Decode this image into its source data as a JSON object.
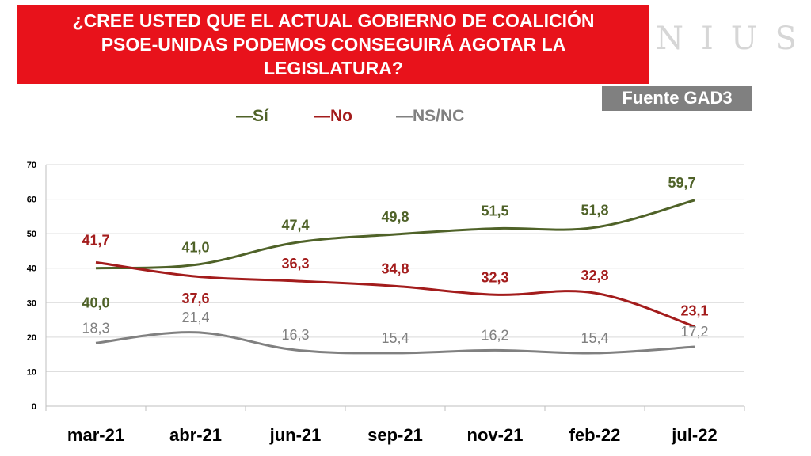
{
  "header": {
    "title": "¿CREE USTED QUE EL ACTUAL GOBIERNO DE COALICIÓN PSOE-UNIDAS PODEMOS CONSEGUIRÁ AGOTAR LA LEGISLATURA?",
    "brand": "NIUS",
    "source": "Fuente GAD3"
  },
  "colors": {
    "si": "#4f6228",
    "no": "#a31c1c",
    "nsnc": "#808080",
    "title_bg": "#e8121b"
  },
  "chart_data": {
    "type": "line",
    "title": "¿CREE USTED QUE EL ACTUAL GOBIERNO DE COALICIÓN PSOE-UNIDAS PODEMOS CONSEGUIRÁ AGOTAR LA LEGISLATURA?",
    "categories": [
      "mar-21",
      "abr-21",
      "jun-21",
      "sep-21",
      "nov-21",
      "feb-22",
      "jul-22"
    ],
    "series": [
      {
        "name": "Sí",
        "values": [
          40.0,
          41.0,
          47.4,
          49.8,
          51.5,
          51.8,
          59.7
        ],
        "labels": [
          "40,0",
          "41,0",
          "47,4",
          "49,8",
          "51,5",
          "51,8",
          "59,7"
        ]
      },
      {
        "name": "No",
        "values": [
          41.7,
          37.6,
          36.3,
          34.8,
          32.3,
          32.8,
          23.1
        ],
        "labels": [
          "41,7",
          "37,6",
          "36,3",
          "34,8",
          "32,3",
          "32,8",
          "23,1"
        ]
      },
      {
        "name": "NS/NC",
        "values": [
          18.3,
          21.4,
          16.3,
          15.4,
          16.2,
          15.4,
          17.2
        ],
        "labels": [
          "18,3",
          "21,4",
          "16,3",
          "15,4",
          "16,2",
          "15,4",
          "17,2"
        ]
      }
    ],
    "legend": [
      "Sí",
      "No",
      "NS/NC"
    ],
    "legend_marker": "—",
    "yticks": [
      "0",
      "10",
      "20",
      "30",
      "40",
      "50",
      "60",
      "70"
    ],
    "ylim": [
      0,
      70
    ],
    "xlabel": "",
    "ylabel": "",
    "grid": true,
    "legend_position": "top"
  }
}
